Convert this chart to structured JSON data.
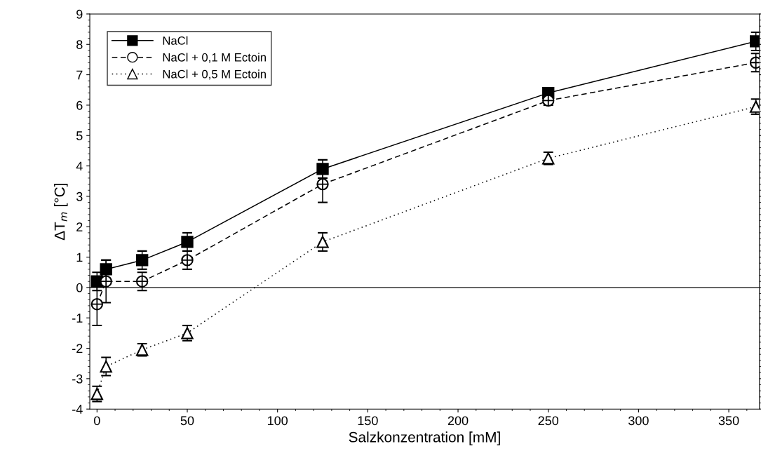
{
  "chart_data": {
    "type": "line",
    "xlabel": "Salzkonzentration [mM]",
    "ylabel": "ΔT$_{m}$ [°C]",
    "xlim": [
      -4,
      367
    ],
    "xticks": [
      0,
      50,
      100,
      150,
      200,
      250,
      300,
      350
    ],
    "ylim": [
      -4,
      9
    ],
    "yticks": [
      {
        "value": -4,
        "label": "-4"
      },
      {
        "value": -3,
        "label": "-3"
      },
      {
        "value": -2,
        "label": "-2"
      },
      {
        "value": -1,
        "label": "-1"
      },
      0,
      1,
      2,
      3,
      4,
      5,
      6,
      7,
      8,
      9
    ],
    "x": [
      0,
      5,
      25,
      50,
      125,
      250,
      365
    ],
    "series": [
      {
        "name": "NaCl",
        "color": "#000000",
        "marker": "square",
        "line_style": "solid",
        "values": [
          0.2,
          0.6,
          0.9,
          1.5,
          3.9,
          6.4,
          8.1
        ],
        "errors": [
          0.3,
          0.3,
          0.3,
          0.3,
          0.3,
          0.1,
          0.3
        ]
      },
      {
        "name": "NaCl + 0,1 M Ectoin",
        "color": "#000000",
        "marker": "circle",
        "line_style": "dashed",
        "values": [
          -0.55,
          0.2,
          0.2,
          0.9,
          3.4,
          6.15,
          7.4
        ],
        "errors": [
          0.7,
          0.7,
          0.3,
          0.3,
          0.6,
          0.15,
          0.3
        ]
      },
      {
        "name": "NaCl + 0,5 M Ectoin",
        "color": "#000000",
        "marker": "triangle",
        "line_style": "dotted",
        "values": [
          -3.5,
          -2.6,
          -2.05,
          -1.5,
          1.5,
          4.25,
          5.95
        ],
        "errors": [
          0.25,
          0.3,
          0.2,
          0.25,
          0.3,
          0.2,
          0.25
        ]
      }
    ],
    "ref_lines": [
      {
        "axis": "y",
        "value": 0,
        "color": "#555555"
      }
    ],
    "grid": false,
    "legend": "top left"
  }
}
